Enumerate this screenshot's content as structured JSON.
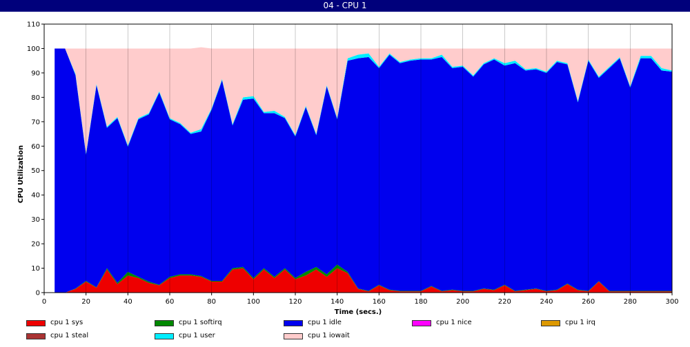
{
  "window": {
    "title": "04 - CPU 1"
  },
  "chart_data": {
    "type": "area",
    "stacked": true,
    "title": "",
    "xlabel": "Time (secs.)",
    "ylabel": "CPU Utilization",
    "xlim": [
      0,
      300
    ],
    "ylim": [
      0,
      110
    ],
    "xticks": [
      "0",
      "20",
      "40",
      "60",
      "80",
      "100",
      "120",
      "140",
      "160",
      "180",
      "200",
      "220",
      "240",
      "260",
      "280",
      "300"
    ],
    "yticks": [
      "0",
      "10",
      "20",
      "30",
      "40",
      "50",
      "60",
      "70",
      "80",
      "90",
      "100",
      "110"
    ],
    "x": [
      5,
      10,
      15,
      20,
      25,
      30,
      35,
      40,
      45,
      50,
      55,
      60,
      65,
      70,
      75,
      80,
      85,
      90,
      95,
      100,
      105,
      110,
      115,
      120,
      125,
      130,
      135,
      140,
      145,
      150,
      155,
      160,
      165,
      170,
      175,
      180,
      185,
      190,
      195,
      200,
      205,
      210,
      215,
      220,
      225,
      230,
      235,
      240,
      245,
      250,
      255,
      260,
      265,
      270,
      275,
      280,
      285,
      290,
      295,
      300
    ],
    "series": [
      {
        "name": "cpu 1 sys",
        "color": "#ee0000",
        "values": [
          0,
          0,
          1.5,
          4.5,
          2,
          9.5,
          3.5,
          7,
          6,
          4,
          3,
          6,
          7,
          7,
          6.5,
          4.5,
          4.5,
          9.5,
          10,
          5.5,
          9.5,
          6,
          9.5,
          5.5,
          7,
          9.5,
          6.5,
          10,
          8,
          1.5,
          0.5,
          3,
          1,
          0.5,
          0.5,
          0.5,
          2.5,
          0.5,
          1,
          0.5,
          0.5,
          1.5,
          1,
          3,
          0.5,
          1,
          1.5,
          0.5,
          1,
          3.5,
          1,
          0.5,
          4.5,
          0.5,
          0.5,
          0.5,
          0.5,
          0.5,
          0.5,
          0.5
        ]
      },
      {
        "name": "cpu 1 softirq",
        "color": "#008800",
        "values": [
          0,
          0,
          0.2,
          0.3,
          0.2,
          0.5,
          0.5,
          1.5,
          0.5,
          0.5,
          0.2,
          0.5,
          0.5,
          0.5,
          0.3,
          0.3,
          0.3,
          0.5,
          0.5,
          0.5,
          0.5,
          0.5,
          0.5,
          0.5,
          1.5,
          1,
          1,
          1.5,
          0.5,
          0.2,
          0.2,
          0.2,
          0.2,
          0.2,
          0.2,
          0.2,
          0.2,
          0.2,
          0.2,
          0.2,
          0.2,
          0.2,
          0.2,
          0.2,
          0.2,
          0.2,
          0.2,
          0.2,
          0.2,
          0.2,
          0.2,
          0.2,
          0.2,
          0.2,
          0.2,
          0.2,
          0.2,
          0.2,
          0.2,
          0.2
        ]
      },
      {
        "name": "cpu 1 idle",
        "color": "#0000ee",
        "values": [
          100,
          100,
          87.3,
          51.7,
          82.8,
          57.5,
          67.5,
          51.3,
          64.5,
          68.5,
          78.8,
          64.5,
          61.5,
          57.5,
          59.2,
          70.2,
          82.2,
          58.5,
          68.5,
          73.5,
          63.5,
          67,
          61.5,
          58,
          67.5,
          54,
          77,
          59.5,
          86.5,
          94.3,
          95.8,
          88.8,
          96.3,
          93.3,
          94.3,
          94.8,
          92.8,
          95.8,
          90.8,
          91.8,
          87.8,
          91.8,
          94.3,
          89.8,
          93.3,
          89.8,
          89.8,
          89.3,
          93.3,
          89.8,
          76.8,
          94.3,
          83.3,
          91.3,
          95.3,
          83.3,
          95.3,
          95.3,
          90.3,
          89.8
        ]
      },
      {
        "name": "cpu 1 nice",
        "color": "#ff00ff",
        "values": [
          0,
          0,
          0,
          0,
          0,
          0,
          0,
          0,
          0,
          0,
          0,
          0,
          0,
          0,
          0,
          0,
          0,
          0,
          0,
          0,
          0,
          0,
          0,
          0,
          0,
          0,
          0,
          0,
          0,
          0,
          0,
          0,
          0,
          0,
          0,
          0,
          0,
          0,
          0,
          0,
          0,
          0,
          0,
          0,
          0,
          0,
          0,
          0,
          0,
          0,
          0,
          0,
          0,
          0,
          0,
          0,
          0,
          0,
          0,
          0
        ]
      },
      {
        "name": "cpu 1 irq",
        "color": "#dd9900",
        "values": [
          0,
          0,
          0,
          0,
          0,
          0,
          0,
          0,
          0,
          0,
          0,
          0,
          0,
          0,
          0,
          0,
          0,
          0,
          0,
          0,
          0,
          0,
          0,
          0,
          0,
          0,
          0,
          0,
          0,
          0,
          0,
          0,
          0,
          0,
          0,
          0,
          0,
          0,
          0,
          0,
          0,
          0,
          0,
          0,
          0,
          0,
          0,
          0,
          0,
          0,
          0,
          0,
          0,
          0,
          0,
          0,
          0,
          0,
          0,
          0
        ]
      },
      {
        "name": "cpu 1 steal",
        "color": "#aa3333",
        "values": [
          0,
          0,
          0,
          0,
          0,
          0,
          0,
          0,
          0,
          0,
          0,
          0,
          0,
          0,
          0,
          0,
          0,
          0,
          0,
          0,
          0,
          0,
          0,
          0,
          0,
          0,
          0,
          0,
          0,
          0,
          0,
          0,
          0,
          0,
          0,
          0,
          0,
          0,
          0,
          0,
          0,
          0,
          0,
          0,
          0,
          0,
          0,
          0,
          0,
          0,
          0,
          0,
          0,
          0,
          0,
          0,
          0,
          0,
          0,
          0
        ]
      },
      {
        "name": "cpu 1 user",
        "color": "#00eeff",
        "values": [
          0,
          0,
          0.5,
          0.5,
          0.5,
          0.5,
          0.5,
          0.5,
          0.5,
          0.5,
          0.5,
          0.5,
          0.5,
          0.5,
          1,
          0.5,
          0.5,
          0.5,
          1,
          1,
          0.5,
          1,
          0.5,
          0.5,
          0.5,
          0.5,
          0.5,
          0.5,
          1,
          1.5,
          1.5,
          0.5,
          0.5,
          0.5,
          0.5,
          0.5,
          0.5,
          1,
          0.5,
          0.5,
          0.5,
          0.5,
          0.5,
          1,
          1,
          0.5,
          0.5,
          0.5,
          0.5,
          0.5,
          0.5,
          0.5,
          0.5,
          0.5,
          0.5,
          0.5,
          1,
          1,
          1,
          0.5
        ]
      },
      {
        "name": "cpu 1 iowait",
        "color": "#ffcccc",
        "values": [
          0,
          0,
          10.5,
          43,
          14.5,
          32,
          28,
          39.7,
          28.5,
          26.5,
          17.5,
          28.5,
          30.5,
          34.5,
          33.5,
          24.5,
          12.5,
          31,
          20,
          19.5,
          26,
          25.5,
          28,
          35.5,
          23.5,
          35,
          15,
          28.5,
          4,
          2.5,
          2,
          7.5,
          2,
          5.5,
          4.5,
          4,
          4,
          2.5,
          7.5,
          7,
          11,
          6,
          4,
          6,
          5,
          8.5,
          8,
          9.5,
          5,
          6,
          21.5,
          4.5,
          11.5,
          7.5,
          3.5,
          15.5,
          3,
          3,
          8,
          9
        ]
      }
    ]
  }
}
